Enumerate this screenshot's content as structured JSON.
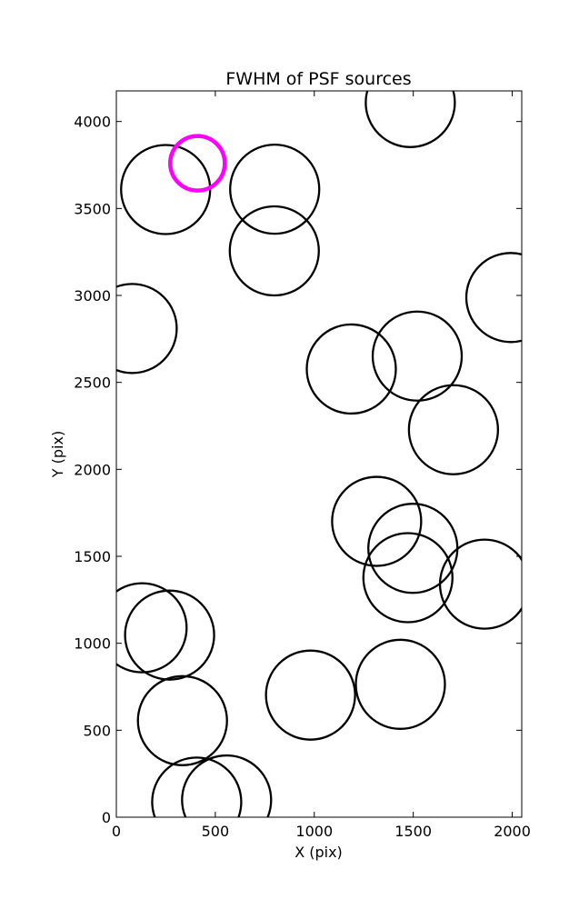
{
  "chart_data": {
    "type": "scatter",
    "title": "FWHM of PSF sources",
    "xlabel": "X (pix)",
    "ylabel": "Y (pix)",
    "xlim": [
      0,
      2048
    ],
    "ylim": [
      0,
      4176
    ],
    "xticks": [
      0,
      500,
      1000,
      1500,
      2000
    ],
    "yticks": [
      0,
      500,
      1000,
      1500,
      2000,
      2500,
      3000,
      3500,
      4000
    ],
    "grid": false,
    "legend": "none",
    "marker": "circle",
    "series": [
      {
        "color": "#000000",
        "points": [
          {
            "x": 1485,
            "y": 4109
          },
          {
            "x": 249,
            "y": 3609
          },
          {
            "x": 800,
            "y": 3611
          },
          {
            "x": 798,
            "y": 3256
          },
          {
            "x": 80,
            "y": 2810
          },
          {
            "x": 1993,
            "y": 2988
          },
          {
            "x": 1520,
            "y": 2651
          },
          {
            "x": 1187,
            "y": 2577
          },
          {
            "x": 1703,
            "y": 2228
          },
          {
            "x": 1315,
            "y": 1701
          },
          {
            "x": 1498,
            "y": 1546
          },
          {
            "x": 1473,
            "y": 1377
          },
          {
            "x": 1860,
            "y": 1340
          },
          {
            "x": 130,
            "y": 1089
          },
          {
            "x": 269,
            "y": 1047
          },
          {
            "x": 981,
            "y": 702
          },
          {
            "x": 1435,
            "y": 764
          },
          {
            "x": 334,
            "y": 555
          },
          {
            "x": 406,
            "y": 87
          },
          {
            "x": 557,
            "y": 99
          }
        ]
      },
      {
        "color": "#ff00ff",
        "points": [
          {
            "x": 410,
            "y": 3760
          }
        ]
      }
    ]
  }
}
